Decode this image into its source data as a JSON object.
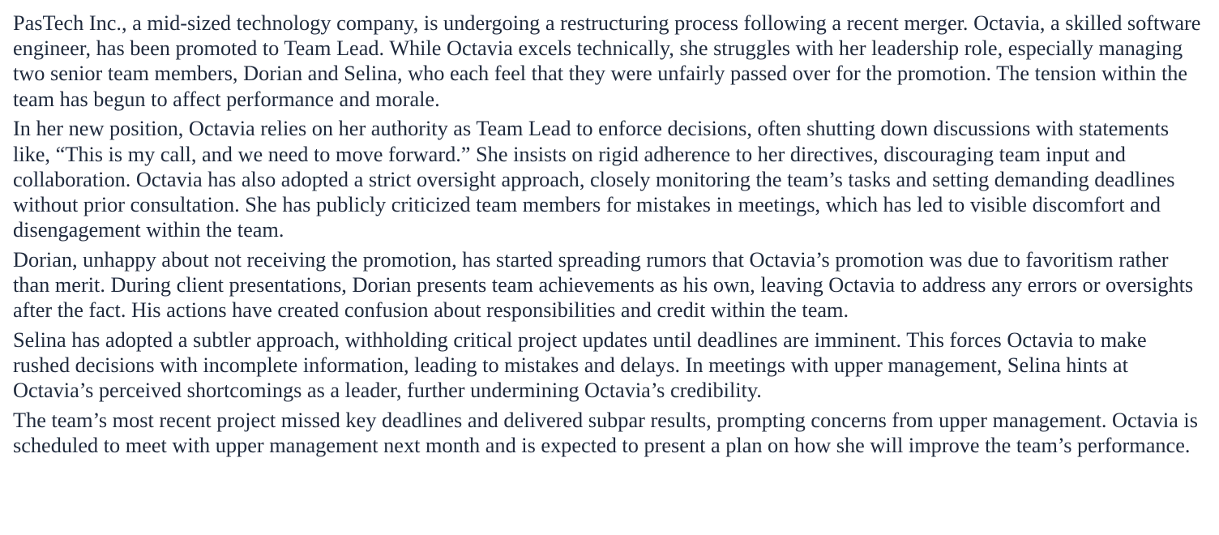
{
  "document": {
    "paragraphs": [
      "PasTech Inc., a mid-sized technology company, is undergoing a restructuring process following a recent merger. Octavia, a skilled software engineer, has been promoted to Team Lead. While Octavia excels technically, she struggles with her leadership role, especially managing two senior team members, Dorian and Selina, who each feel that they were unfairly passed over for the promotion. The tension within the team has begun to affect performance and morale.",
      "In her new position, Octavia relies on her authority as Team Lead to enforce decisions, often shutting down discussions with statements like, “This is my call, and we need to move forward.” She insists on rigid adherence to her directives, discouraging team input and collaboration. Octavia has also adopted a strict oversight approach, closely monitoring the team’s tasks and setting demanding deadlines without prior consultation. She has publicly criticized team members for mistakes in meetings, which has led to visible discomfort and disengagement within the team.",
      "Dorian, unhappy about not receiving the promotion, has started spreading rumors that Octavia’s promotion was due to favoritism rather than merit. During client presentations, Dorian presents team achievements as his own, leaving Octavia to address any errors or oversights after the fact. His actions have created confusion about responsibilities and credit within the team.",
      "Selina has adopted a subtler approach, withholding critical project updates until deadlines are imminent. This forces Octavia to make rushed decisions with incomplete information, leading to mistakes and delays. In meetings with upper management, Selina hints at Octavia’s perceived shortcomings as a leader, further undermining Octavia’s credibility.",
      "The team’s most recent project missed key deadlines and delivered subpar results, prompting concerns from upper management. Octavia is scheduled to meet with upper management next month and is expected to present a plan on how she will improve the team’s performance."
    ]
  }
}
